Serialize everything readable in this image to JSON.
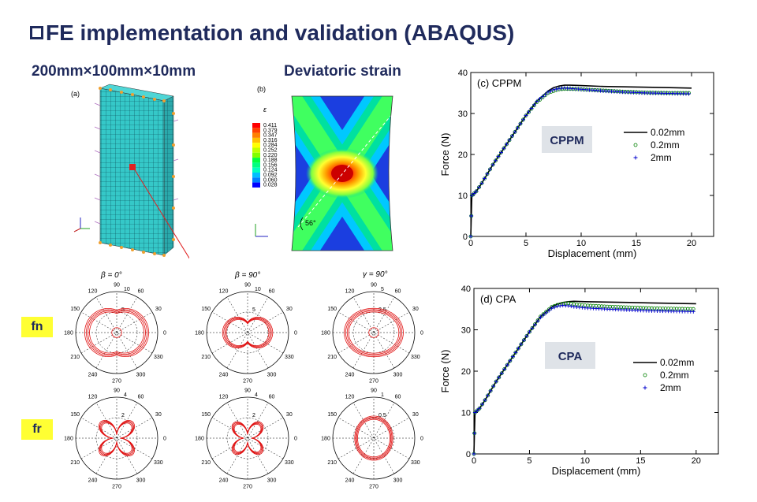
{
  "title": "FE implementation and validation (ABAQUS)",
  "subtitle_left": "200mm×100mm×10mm",
  "subtitle_right": "Deviatoric strain",
  "panel_a_label": "(a)",
  "panel_b_label": "(b)",
  "panel_b_angle": "56°",
  "contour_legend": {
    "symbol": "ε",
    "values": [
      "0.411",
      "0.379",
      "0.347",
      "0.316",
      "0.284",
      "0.252",
      "0.220",
      "0.188",
      "0.156",
      "0.124",
      "0.092",
      "0.060",
      "0.028"
    ],
    "colors": [
      "#ff0000",
      "#ff4000",
      "#ff8000",
      "#ffbf00",
      "#ffff00",
      "#bfff00",
      "#80ff00",
      "#00ff40",
      "#00ff80",
      "#00ffbf",
      "#00bfff",
      "#0080ff",
      "#0000ff"
    ]
  },
  "row_labels": {
    "fn": "fn",
    "fr": "fr"
  },
  "polar_headers": [
    "β = 0°",
    "β = 90°",
    "γ = 90°"
  ],
  "polar_angle_labels": [
    "90",
    "60",
    "30",
    "0",
    "330",
    "300",
    "270",
    "240",
    "210",
    "180",
    "150",
    "120"
  ],
  "polar_radial_labels": {
    "fn": [
      [
        "10",
        "5"
      ],
      [
        "10",
        "5"
      ],
      [
        "5",
        "2.5"
      ]
    ],
    "fr": [
      [
        "4",
        "2"
      ],
      [
        "4",
        "2"
      ],
      [
        "1",
        "0.5"
      ]
    ]
  },
  "chart_data": [
    {
      "type": "line",
      "title": "(c) CPPM",
      "annotation": "CPPM",
      "xlabel": "Displacement (mm)",
      "ylabel": "Force (N)",
      "xlim": [
        0,
        22
      ],
      "ylim": [
        0,
        40
      ],
      "xticks": [
        0,
        5,
        10,
        15,
        20
      ],
      "yticks": [
        0,
        10,
        20,
        30,
        40
      ],
      "legend_position": "right-middle",
      "series": [
        {
          "name": "0.02mm",
          "marker": "line",
          "color": "#000000",
          "x": [
            0,
            0.1,
            0.5,
            1,
            2,
            3,
            4,
            5,
            6,
            7,
            7.5,
            8,
            8.5,
            9,
            10,
            12,
            14,
            16,
            18,
            20
          ],
          "y": [
            0,
            10,
            11,
            13,
            17.5,
            21.5,
            25.5,
            29.5,
            33,
            35.5,
            36.3,
            36.7,
            36.9,
            36.9,
            36.8,
            36.6,
            36.5,
            36.4,
            36.3,
            36.2
          ]
        },
        {
          "name": "0.2mm",
          "marker": "circle",
          "color": "#008000",
          "x": [
            0,
            0.1,
            0.5,
            1,
            2,
            3,
            4,
            5,
            6,
            7,
            7.5,
            8,
            8.5,
            9,
            10,
            12,
            14,
            16,
            18,
            20
          ],
          "y": [
            0,
            10,
            11,
            13,
            17.5,
            21.5,
            25.5,
            29.5,
            32.8,
            35,
            35.5,
            35.9,
            36,
            36,
            35.9,
            35.6,
            35.3,
            35.1,
            35,
            35
          ]
        },
        {
          "name": "2mm",
          "marker": "plus",
          "color": "#0000cc",
          "x": [
            0,
            0.1,
            0.5,
            1,
            2,
            3,
            4,
            5,
            6,
            7,
            7.5,
            8,
            8.5,
            9,
            10,
            12,
            14,
            16,
            18,
            20
          ],
          "y": [
            0,
            10,
            11,
            13,
            17.5,
            21.5,
            25.5,
            29.5,
            33,
            35.2,
            35.8,
            36.1,
            36.2,
            36.1,
            35.9,
            35.5,
            35.2,
            35,
            34.9,
            34.8
          ]
        }
      ]
    },
    {
      "type": "line",
      "title": "(d) CPA",
      "annotation": "CPA",
      "xlabel": "Displacement (mm)",
      "ylabel": "Force (N)",
      "xlim": [
        0,
        22
      ],
      "ylim": [
        0,
        40
      ],
      "xticks": [
        0,
        5,
        10,
        15,
        20
      ],
      "yticks": [
        0,
        10,
        20,
        30,
        40
      ],
      "legend_position": "right-middle",
      "series": [
        {
          "name": "0.02mm",
          "marker": "line",
          "color": "#000000",
          "x": [
            0,
            0.1,
            0.5,
            1,
            2,
            3,
            4,
            5,
            6,
            7,
            7.5,
            8,
            8.5,
            9,
            10,
            12,
            14,
            16,
            18,
            20
          ],
          "y": [
            0,
            10,
            11,
            13,
            17.5,
            21.5,
            25.5,
            29.5,
            33.2,
            35.5,
            36.2,
            36.6,
            36.8,
            36.9,
            36.8,
            36.7,
            36.6,
            36.5,
            36.4,
            36.3
          ]
        },
        {
          "name": "0.2mm",
          "marker": "circle",
          "color": "#008000",
          "x": [
            0,
            0.1,
            0.5,
            1,
            2,
            3,
            4,
            5,
            6,
            7,
            7.5,
            8,
            8.5,
            9,
            10,
            12,
            14,
            16,
            18,
            20
          ],
          "y": [
            0,
            10,
            11,
            13,
            17.5,
            21.5,
            25.5,
            29.5,
            33.2,
            35.5,
            36,
            36.3,
            36.4,
            36.2,
            35.9,
            35.6,
            35.4,
            35.2,
            35.1,
            35
          ]
        },
        {
          "name": "2mm",
          "marker": "plus",
          "color": "#0000cc",
          "x": [
            0,
            0.1,
            0.5,
            1,
            2,
            3,
            4,
            5,
            6,
            7,
            7.5,
            8,
            8.5,
            9,
            10,
            12,
            14,
            16,
            18,
            20
          ],
          "y": [
            0,
            10,
            11,
            13,
            17.5,
            21.5,
            25.5,
            29.5,
            33,
            35.2,
            35.7,
            35.9,
            35.8,
            35.6,
            35.3,
            35,
            34.8,
            34.6,
            34.5,
            34.4
          ]
        }
      ]
    }
  ]
}
